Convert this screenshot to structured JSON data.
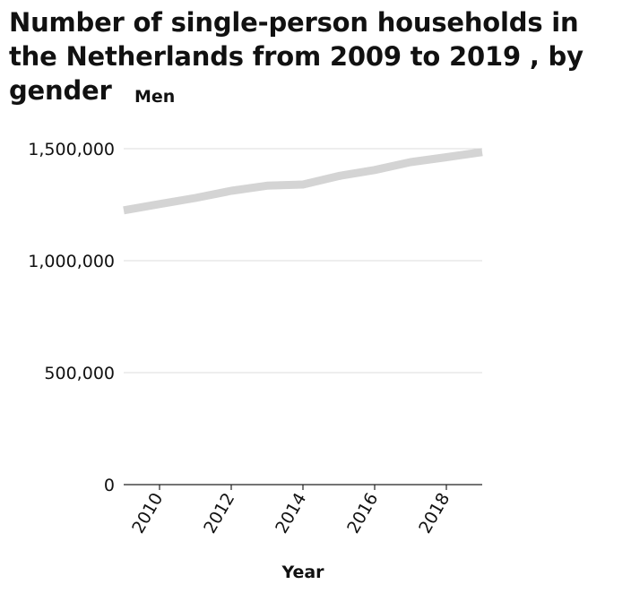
{
  "chart_data": {
    "type": "line",
    "title": "Number of single-person households in the Netherlands from 2009 to 2019 , by gender",
    "xlabel": "Year",
    "ylabel": "Men",
    "x": [
      2009,
      2010,
      2011,
      2012,
      2013,
      2014,
      2015,
      2016,
      2017,
      2018,
      2019
    ],
    "series": [
      {
        "values": [
          1225000,
          1253000,
          1280000,
          1312000,
          1335000,
          1340000,
          1378000,
          1405000,
          1440000,
          1462000,
          1485000
        ],
        "color": "#d4d4d4"
      }
    ],
    "xlim": [
      2009,
      2019
    ],
    "ylim": [
      0,
      1500000
    ],
    "x_ticks": [
      2010,
      2012,
      2014,
      2016,
      2018
    ],
    "x_tick_labels": [
      "2010",
      "2012",
      "2014",
      "2016",
      "2018"
    ],
    "y_ticks": [
      0,
      500000,
      1000000,
      1500000
    ],
    "y_tick_labels": [
      "0",
      "500,000",
      "1,000,000",
      "1,500,000"
    ],
    "grid": true,
    "legend": "none",
    "colors": {
      "line": "#d4d4d4",
      "grid": "#dddddd",
      "axis": "#222222",
      "text": "#111111"
    }
  }
}
